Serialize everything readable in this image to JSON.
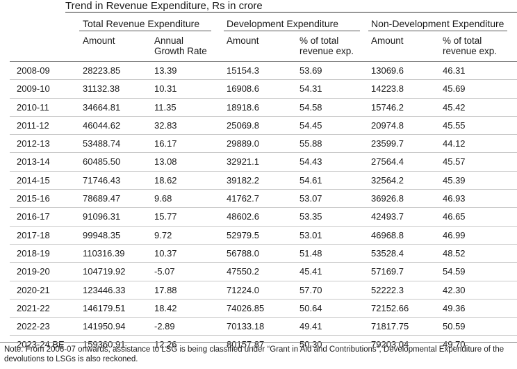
{
  "title": "Trend in Revenue Expenditure, Rs  in crore",
  "groups": [
    "Total Revenue Expenditure",
    "Development Expenditure",
    "Non-Development Expenditure"
  ],
  "subheaders": [
    "Amount",
    "Annual Growth Rate",
    "Amount",
    "% of total revenue exp.",
    "Amount",
    "% of total revenue exp."
  ],
  "rows": [
    [
      "2008-09",
      "28223.85",
      "13.39",
      "15154.3",
      "53.69",
      "13069.6",
      "46.31"
    ],
    [
      "2009-10",
      "31132.38",
      "10.31",
      "16908.6",
      "54.31",
      "14223.8",
      "45.69"
    ],
    [
      "2010-11",
      "34664.81",
      "11.35",
      "18918.6",
      "54.58",
      "15746.2",
      "45.42"
    ],
    [
      "2011-12",
      "46044.62",
      "32.83",
      "25069.8",
      "54.45",
      "20974.8",
      "45.55"
    ],
    [
      "2012-13",
      "53488.74",
      "16.17",
      "29889.0",
      "55.88",
      "23599.7",
      "44.12"
    ],
    [
      "2013-14",
      "60485.50",
      "13.08",
      "32921.1",
      "54.43",
      "27564.4",
      "45.57"
    ],
    [
      "2014-15",
      "71746.43",
      "18.62",
      "39182.2",
      "54.61",
      "32564.2",
      "45.39"
    ],
    [
      "2015-16",
      "78689.47",
      "9.68",
      "41762.7",
      "53.07",
      "36926.8",
      "46.93"
    ],
    [
      "2016-17",
      "91096.31",
      "15.77",
      "48602.6",
      "53.35",
      "42493.7",
      "46.65"
    ],
    [
      "2017-18",
      "99948.35",
      "9.72",
      "52979.5",
      "53.01",
      "46968.8",
      "46.99"
    ],
    [
      "2018-19",
      "110316.39",
      "10.37",
      "56788.0",
      "51.48",
      "53528.4",
      "48.52"
    ],
    [
      "2019-20",
      "104719.92",
      "-5.07",
      "47550.2",
      "45.41",
      "57169.7",
      "54.59"
    ],
    [
      "2020-21",
      "123446.33",
      "17.88",
      "71224.0",
      "57.70",
      "52222.3",
      "42.30"
    ],
    [
      "2021-22",
      "146179.51",
      "18.42",
      "74026.85",
      "50.64",
      "72152.66",
      "49.36"
    ],
    [
      "2022-23",
      "141950.94",
      "-2.89",
      "70133.18",
      "49.41",
      "71817.75",
      "50.59"
    ],
    [
      "2023-24 BE",
      "159360.91",
      "12.26",
      "80157.87",
      "50.30",
      "79203.04",
      "49.70"
    ]
  ],
  "note": "Note: From 2006-07 onwards, assistance to LSG is being classified under “Grant in Aid and Contributions”, Developmental Expenditure of the devolutions to LSGs is also reckoned."
}
